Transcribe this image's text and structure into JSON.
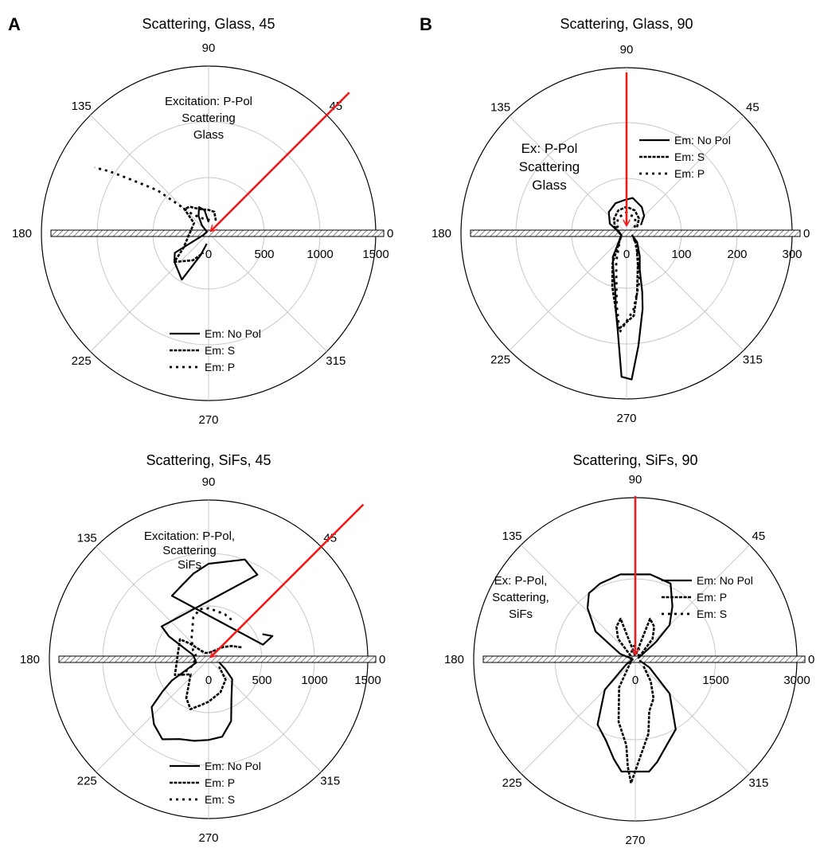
{
  "figure": {
    "panel_labels": [
      "A",
      "B"
    ]
  },
  "colors": {
    "excitation_arrow": "#ee1c1c",
    "axis": "#000000",
    "grid": "#c8c8c8",
    "slide_hatch": "#555555"
  },
  "chart_data": [
    {
      "type": "polar",
      "title": "Scattering, Glass, 45",
      "radial_ticks": [
        "0",
        "500",
        "1000",
        "1500"
      ],
      "rmax": 1500,
      "angle_labels": [
        "90",
        "45",
        "0",
        "135",
        "180",
        "225",
        "270",
        "315"
      ],
      "annotation": [
        "Excitation: P-Pol",
        "Scattering",
        "Glass"
      ],
      "excitation_angle_deg": 45,
      "legend": [
        "Em: No Pol",
        "Em: S",
        "Em: P"
      ],
      "legend_placement": "bottom-center",
      "series": [
        {
          "name": "Em: No Pol",
          "style": "solid",
          "points": [
            [
              90,
              100
            ],
            [
              100,
              210
            ],
            [
              110,
              250
            ],
            [
              120,
              180
            ],
            [
              130,
              95
            ],
            [
              140,
              20
            ],
            [
              200,
              55
            ],
            [
              210,
              350
            ],
            [
              220,
              400
            ],
            [
              240,
              480
            ],
            [
              250,
              210
            ],
            [
              260,
              95
            ]
          ]
        },
        {
          "name": "Em: S",
          "style": "dashed",
          "points": [
            [
              60,
              130
            ],
            [
              75,
              200
            ],
            [
              90,
              210
            ],
            [
              110,
              230
            ],
            [
              125,
              290
            ],
            [
              135,
              310
            ],
            [
              145,
              160
            ],
            [
              210,
              260
            ],
            [
              220,
              400
            ],
            [
              240,
              280
            ],
            [
              255,
              180
            ]
          ]
        },
        {
          "name": "Em: P",
          "style": "dotted",
          "points": [
            [
              85,
              120
            ],
            [
              110,
              140
            ],
            [
              130,
              220
            ],
            [
              140,
              600
            ],
            [
              145,
              830
            ],
            [
              148,
              1050
            ],
            [
              150,
              1180
            ]
          ]
        }
      ]
    },
    {
      "type": "polar",
      "title": "Scattering, Glass, 90",
      "radial_ticks": [
        "0",
        "100",
        "200",
        "300"
      ],
      "rmax": 300,
      "angle_labels": [
        "90",
        "45",
        "0",
        "135",
        "180",
        "225",
        "270",
        "315"
      ],
      "annotation": [
        "Ex: P-Pol",
        "Scattering",
        "Glass"
      ],
      "excitation_angle_deg": 90,
      "legend": [
        "Em: No Pol",
        "Em: S",
        "Em: P"
      ],
      "legend_placement": "top-right",
      "series": [
        {
          "name": "Em: No Pol",
          "style": "solid",
          "points": [
            [
              30,
              30
            ],
            [
              45,
              45
            ],
            [
              60,
              55
            ],
            [
              80,
              65
            ],
            [
              95,
              60
            ],
            [
              110,
              58
            ],
            [
              130,
              50
            ],
            [
              150,
              35
            ],
            [
              160,
              20
            ],
            [
              200,
              10
            ],
            [
              240,
              50
            ],
            [
              250,
              70
            ],
            [
              260,
              115
            ],
            [
              262,
              140
            ],
            [
              265,
              180
            ],
            [
              268,
              260
            ],
            [
              272,
              265
            ],
            [
              276,
              205
            ],
            [
              282,
              140
            ],
            [
              285,
              110
            ],
            [
              290,
              70
            ],
            [
              300,
              48
            ],
            [
              320,
              25
            ],
            [
              345,
              10
            ]
          ]
        },
        {
          "name": "Em: S",
          "style": "dashed",
          "points": [
            [
              30,
              22
            ],
            [
              50,
              35
            ],
            [
              70,
              44
            ],
            [
              90,
              48
            ],
            [
              110,
              44
            ],
            [
              130,
              35
            ],
            [
              150,
              25
            ],
            [
              200,
              10
            ],
            [
              245,
              60
            ],
            [
              255,
              100
            ],
            [
              262,
              140
            ],
            [
              265,
              175
            ],
            [
              275,
              150
            ],
            [
              280,
              110
            ],
            [
              290,
              60
            ],
            [
              310,
              28
            ],
            [
              340,
              12
            ]
          ]
        },
        {
          "name": "Em: P",
          "style": "dotted",
          "points": [
            [
              35,
              18
            ],
            [
              60,
              32
            ],
            [
              90,
              38
            ],
            [
              120,
              32
            ],
            [
              145,
              20
            ],
            [
              205,
              12
            ],
            [
              250,
              55
            ],
            [
              262,
              130
            ],
            [
              266,
              180
            ],
            [
              275,
              140
            ],
            [
              285,
              90
            ],
            [
              300,
              40
            ],
            [
              330,
              15
            ]
          ]
        }
      ]
    },
    {
      "type": "polar",
      "title": "Scattering, SiFs, 45",
      "radial_ticks": [
        "0",
        "500",
        "1000",
        "1500"
      ],
      "rmax": 1500,
      "angle_labels": [
        "90",
        "45",
        "0",
        "135",
        "180",
        "225",
        "270",
        "315"
      ],
      "annotation": [
        "Excitation: P-Pol,",
        "Scattering",
        "SiFs"
      ],
      "excitation_angle_deg": 45,
      "legend": [
        "Em: No Pol",
        "Em: P",
        "Em: S"
      ],
      "legend_placement": "bottom-center",
      "series": [
        {
          "name": "Em: No Pol",
          "style": "solid",
          "points": [
            [
              25,
              560
            ],
            [
              20,
              640
            ],
            [
              15,
              530
            ],
            [
              120,
              690
            ],
            [
              110,
              740
            ],
            [
              100,
              820
            ],
            [
              90,
              900
            ],
            [
              70,
              1000
            ],
            [
              60,
              920
            ],
            [
              145,
              540
            ],
            [
              150,
              430
            ],
            [
              165,
              150
            ],
            [
              195,
              120
            ],
            [
              210,
              400
            ],
            [
              215,
              530
            ],
            [
              220,
              700
            ],
            [
              230,
              800
            ],
            [
              240,
              870
            ],
            [
              250,
              800
            ],
            [
              260,
              780
            ],
            [
              270,
              760
            ],
            [
              280,
              740
            ],
            [
              290,
              620
            ],
            [
              300,
              430
            ],
            [
              320,
              290
            ],
            [
              330,
              180
            ],
            [
              345,
              100
            ]
          ]
        },
        {
          "name": "Em: P",
          "style": "dashed",
          "points": [
            [
              20,
              330
            ],
            [
              30,
              250
            ],
            [
              40,
              180
            ],
            [
              60,
              90
            ],
            [
              90,
              60
            ],
            [
              120,
              70
            ],
            [
              140,
              230
            ],
            [
              145,
              330
            ],
            [
              205,
              350
            ],
            [
              220,
              220
            ],
            [
              240,
              420
            ],
            [
              250,
              500
            ],
            [
              260,
              440
            ],
            [
              270,
              400
            ],
            [
              290,
              330
            ],
            [
              310,
              250
            ],
            [
              325,
              120
            ]
          ]
        },
        {
          "name": "Em: S",
          "style": "dotted",
          "points": [
            [
              60,
              430
            ],
            [
              70,
              450
            ],
            [
              80,
              460
            ],
            [
              90,
              480
            ],
            [
              100,
              480
            ],
            [
              110,
              420
            ],
            [
              130,
              250
            ],
            [
              150,
              170
            ],
            [
              160,
              130
            ],
            [
              200,
              150
            ],
            [
              210,
              300
            ]
          ]
        }
      ]
    },
    {
      "type": "polar",
      "title": "Scattering, SiFs, 90",
      "radial_ticks": [
        "0",
        "1500",
        "3000"
      ],
      "rmax": 3000,
      "angle_labels": [
        "90",
        "45",
        "0",
        "135",
        "180",
        "225",
        "270",
        "315"
      ],
      "annotation": [
        "Ex: P-Pol,",
        "Scattering,",
        "SiFs"
      ],
      "excitation_angle_deg": 90,
      "legend": [
        "Em: No Pol",
        "Em: P",
        "Em: S"
      ],
      "legend_placement": "top-right",
      "series": [
        {
          "name": "Em: No Pol",
          "style": "solid",
          "points": [
            [
              20,
              50
            ],
            [
              30,
              100
            ],
            [
              40,
              500
            ],
            [
              45,
              900
            ],
            [
              55,
              1200
            ],
            [
              65,
              1550
            ],
            [
              80,
              1600
            ],
            [
              100,
              1600
            ],
            [
              115,
              1550
            ],
            [
              125,
              1500
            ],
            [
              133,
              1300
            ],
            [
              145,
              900
            ],
            [
              160,
              300
            ],
            [
              175,
              50
            ],
            [
              190,
              50
            ],
            [
              210,
              200
            ],
            [
              225,
              800
            ],
            [
              240,
              1400
            ],
            [
              250,
              1600
            ],
            [
              258,
              1900
            ],
            [
              263,
              2100
            ],
            [
              277,
              2100
            ],
            [
              282,
              1950
            ],
            [
              290,
              1700
            ],
            [
              300,
              1500
            ],
            [
              315,
              900
            ],
            [
              330,
              300
            ],
            [
              345,
              80
            ]
          ]
        },
        {
          "name": "Em: P",
          "style": "dashed",
          "points": [
            [
              30,
              80
            ],
            [
              50,
              500
            ],
            [
              60,
              700
            ],
            [
              70,
              800
            ],
            [
              85,
              80
            ],
            [
              95,
              80
            ],
            [
              110,
              800
            ],
            [
              120,
              700
            ],
            [
              130,
              500
            ],
            [
              145,
              100
            ],
            [
              200,
              80
            ],
            [
              240,
              600
            ],
            [
              255,
              1200
            ],
            [
              264,
              1600
            ],
            [
              266,
              2000
            ],
            [
              268,
              2300
            ],
            [
              280,
              1400
            ],
            [
              285,
              1000
            ],
            [
              295,
              800
            ],
            [
              305,
              500
            ],
            [
              320,
              200
            ]
          ]
        },
        {
          "name": "Em: S",
          "style": "dotted",
          "points": [
            [
              40,
              80
            ],
            [
              70,
              200
            ],
            [
              85,
              250
            ],
            [
              95,
              250
            ],
            [
              110,
              200
            ],
            [
              140,
              80
            ]
          ]
        }
      ]
    }
  ]
}
